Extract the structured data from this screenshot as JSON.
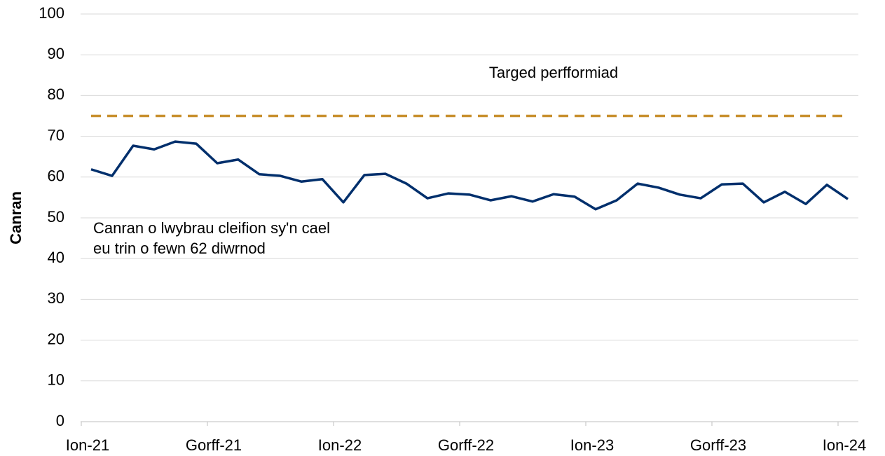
{
  "chart_data": {
    "type": "line",
    "y_label": "Canran",
    "categories": [
      "Ion-21",
      null,
      null,
      null,
      null,
      null,
      "Gorff-21",
      null,
      null,
      null,
      null,
      null,
      "Ion-22",
      null,
      null,
      null,
      null,
      null,
      "Gorff-22",
      null,
      null,
      null,
      null,
      null,
      "Ion-23",
      null,
      null,
      null,
      null,
      null,
      "Gorff-23",
      null,
      null,
      null,
      null,
      null,
      "Ion-24"
    ],
    "series": [
      {
        "name": [
          "Canran o lwybrau cleifion sy'n cael",
          "eu trin o fewn 62 diwrnod"
        ],
        "color": "#002f6c",
        "dashed": false,
        "values": [
          61.9,
          60.3,
          67.7,
          66.8,
          68.7,
          68.2,
          63.4,
          64.3,
          60.7,
          60.3,
          58.9,
          59.5,
          53.8,
          60.5,
          60.8,
          58.4,
          54.8,
          56.0,
          55.7,
          54.3,
          55.3,
          54.0,
          55.8,
          55.2,
          52.1,
          54.3,
          58.4,
          57.4,
          55.7,
          54.8,
          58.2,
          58.4,
          53.8,
          56.4,
          53.4,
          58.1,
          54.6
        ]
      },
      {
        "name": [
          "Targed perfformiad"
        ],
        "color": "#c8902e",
        "dashed": true,
        "values": [
          75,
          75,
          75,
          75,
          75,
          75,
          75,
          75,
          75,
          75,
          75,
          75,
          75,
          75,
          75,
          75,
          75,
          75,
          75,
          75,
          75,
          75,
          75,
          75,
          75,
          75,
          75,
          75,
          75,
          75,
          75,
          75,
          75,
          75,
          75,
          75,
          75
        ]
      }
    ],
    "ylim": [
      0,
      100
    ],
    "yticks": [
      0,
      10,
      20,
      30,
      40,
      50,
      60,
      70,
      80,
      90,
      100
    ],
    "grid": true
  }
}
